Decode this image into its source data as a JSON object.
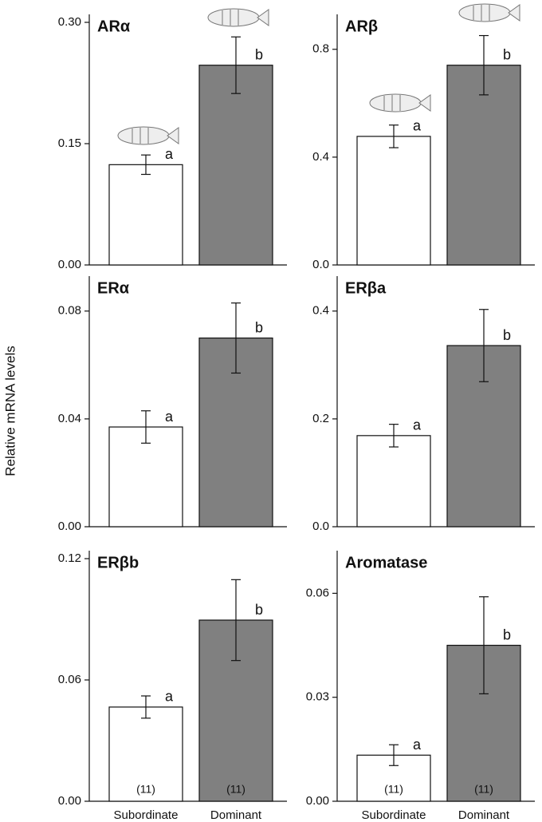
{
  "y_label": "Relative mRNA levels",
  "chart_data": [
    {
      "type": "bar",
      "title": "ARα",
      "values": [
        0.124,
        0.247
      ],
      "errors": [
        0.012,
        0.035
      ],
      "colors": [
        "#ffffff",
        "#808080"
      ],
      "annotations": [
        "a",
        "b"
      ],
      "ylim": [
        0,
        0.3
      ],
      "yticks": [
        {
          "value": 0,
          "label": "0.00"
        },
        0.15,
        {
          "value": 0.3,
          "label": "0.30"
        }
      ]
    },
    {
      "type": "bar",
      "title": "ARβ",
      "values": [
        0.477,
        0.741
      ],
      "errors": [
        0.042,
        0.11
      ],
      "colors": [
        "#ffffff",
        "#808080"
      ],
      "annotations": [
        "a",
        "b"
      ],
      "ylim": [
        0,
        0.9
      ],
      "yticks": [
        {
          "value": 0,
          "label": "0.0"
        },
        0.4,
        0.8
      ]
    },
    {
      "type": "bar",
      "title": "ERα",
      "values": [
        0.037,
        0.07
      ],
      "errors": [
        0.006,
        0.013
      ],
      "colors": [
        "#ffffff",
        "#808080"
      ],
      "annotations": [
        "a",
        "b"
      ],
      "ylim": [
        0,
        0.09
      ],
      "yticks": [
        {
          "value": 0,
          "label": "0.00"
        },
        0.04,
        0.08
      ]
    },
    {
      "type": "bar",
      "title": "ERβa",
      "values": [
        0.169,
        0.336
      ],
      "errors": [
        0.021,
        0.067
      ],
      "colors": [
        "#ffffff",
        "#808080"
      ],
      "annotations": [
        "a",
        "b"
      ],
      "ylim": [
        0,
        0.45
      ],
      "yticks": [
        {
          "value": 0,
          "label": "0.0"
        },
        0.2,
        0.4
      ]
    },
    {
      "type": "bar",
      "title": "ERβb",
      "categories": [
        "Subordinate",
        "Dominant"
      ],
      "n_labels": [
        "(11)",
        "(11)"
      ],
      "values": [
        0.0466,
        0.0896
      ],
      "errors": [
        0.0055,
        0.02
      ],
      "colors": [
        "#ffffff",
        "#808080"
      ],
      "annotations": [
        "a",
        "b"
      ],
      "ylim": [
        0,
        0.12
      ],
      "yticks": [
        {
          "value": 0,
          "label": "0.00"
        },
        0.06,
        0.12
      ]
    },
    {
      "type": "bar",
      "title": "Aromatase",
      "categories": [
        "Subordinate",
        "Dominant"
      ],
      "n_labels": [
        "(11)",
        "(11)"
      ],
      "values": [
        0.0133,
        0.045
      ],
      "errors": [
        0.003,
        0.014
      ],
      "colors": [
        "#ffffff",
        "#808080"
      ],
      "annotations": [
        "a",
        "b"
      ],
      "ylim": [
        0,
        0.07
      ],
      "yticks": [
        {
          "value": 0,
          "label": "0.00"
        },
        0.03,
        0.06
      ]
    }
  ]
}
